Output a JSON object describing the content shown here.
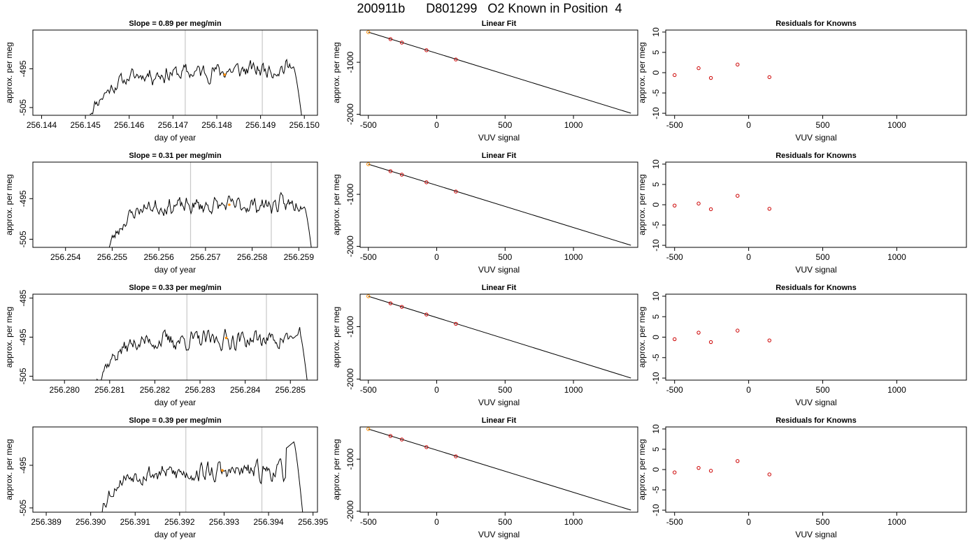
{
  "page_title": "200911b      D801299   O2 Known in Position  4",
  "colors": {
    "trace": "#000000",
    "marker": "#ff8c00",
    "residual": "#cc0000",
    "vline": "#c8c8c8"
  },
  "chart_data": [
    {
      "type": "line",
      "title": "Slope =  0.89  per meg/min",
      "xlabel": "day of year",
      "ylabel": "approx. per meg",
      "xlim": [
        256.1438,
        256.1503
      ],
      "xticks": [
        "256.144",
        "256.145",
        "256.146",
        "256.147",
        "256.148",
        "256.149",
        "256.150"
      ],
      "xtick_values": [
        256.144,
        256.145,
        256.146,
        256.147,
        256.148,
        256.149,
        256.15
      ],
      "ylim": [
        -507,
        -485
      ],
      "yticks": [
        "-505",
        "-495"
      ],
      "ytick_values": [
        -505,
        -495
      ],
      "vlines": [
        256.14728,
        256.14904
      ],
      "marker": [
        256.14818,
        -496.5
      ],
      "trace": {
        "start": 256.1451,
        "end": 256.15,
        "n": 220,
        "seed": 11,
        "rise": 0.27,
        "base": -506,
        "level": -496.5,
        "trend": 0.89,
        "wiggle": 2.2,
        "drop_at": 0.95,
        "drop_to": -513,
        "tail_top": -494.5
      },
      "grid": false
    },
    {
      "type": "line",
      "title": "Linear Fit",
      "xlabel": "VUV signal",
      "ylabel": "approx. per meg",
      "xlim": [
        -560,
        1470
      ],
      "xticks": [
        "-500",
        "0",
        "500",
        "1000"
      ],
      "xtick_values": [
        -500,
        0,
        500,
        1000
      ],
      "ylim": [
        -2020,
        -380
      ],
      "yticks": [
        "-1000",
        "-2000"
      ],
      "ytick_values": [
        -1000,
        -2000
      ],
      "line": {
        "x": [
          -500,
          1420
        ],
        "y": [
          -420,
          -1980
        ]
      },
      "points": {
        "x": [
          -500,
          -338,
          -255,
          -75,
          140
        ],
        "y": [
          -420,
          -554,
          -622,
          -768,
          -946
        ]
      },
      "orange_index": 0,
      "grid": false
    },
    {
      "type": "scatter",
      "title": "Residuals for Knowns",
      "xlabel": "VUV signal",
      "ylabel": "approx. per meg",
      "xlim": [
        -560,
        1470
      ],
      "xticks": [
        "-500",
        "0",
        "500",
        "1000"
      ],
      "xtick_values": [
        -500,
        0,
        500,
        1000
      ],
      "ylim": [
        -10.5,
        10.5
      ],
      "yticks": [
        "-10",
        "-5",
        "0",
        "5",
        "10"
      ],
      "ytick_values": [
        -10,
        -5,
        0,
        5,
        10
      ],
      "points": {
        "x": [
          -500,
          -338,
          -255,
          -75,
          140
        ],
        "y": [
          -0.6,
          1.1,
          -1.3,
          2.0,
          -1.1
        ]
      },
      "grid": false
    },
    {
      "type": "line",
      "title": "Slope =  0.31  per meg/min",
      "xlabel": "day of year",
      "ylabel": "approx. per meg",
      "xlim": [
        256.2533,
        256.2594
      ],
      "xticks": [
        "256.254",
        "256.255",
        "256.256",
        "256.257",
        "256.258",
        "256.259"
      ],
      "xtick_values": [
        256.254,
        256.255,
        256.256,
        256.257,
        256.258,
        256.259
      ],
      "ylim": [
        -507,
        -486
      ],
      "yticks": [
        "-505",
        "-495"
      ],
      "ytick_values": [
        -505,
        -495
      ],
      "vlines": [
        256.25668,
        256.25841
      ],
      "marker": [
        256.25751,
        -496.5
      ],
      "trace": {
        "start": 256.2549,
        "end": 256.2593,
        "n": 220,
        "seed": 23,
        "rise": 0.22,
        "base": -507.5,
        "level": -497,
        "trend": 0.31,
        "wiggle": 2.0,
        "drop_at": 0.96,
        "drop_to": -510,
        "tail_top": -497
      },
      "grid": false
    },
    {
      "type": "line",
      "title": "Linear Fit",
      "xlabel": "VUV signal",
      "ylabel": "approx. per meg",
      "xlim": [
        -560,
        1470
      ],
      "xticks": [
        "-500",
        "0",
        "500",
        "1000"
      ],
      "xtick_values": [
        -500,
        0,
        500,
        1000
      ],
      "ylim": [
        -2020,
        -380
      ],
      "yticks": [
        "-1000",
        "-2000"
      ],
      "ytick_values": [
        -1000,
        -2000
      ],
      "line": {
        "x": [
          -500,
          1420
        ],
        "y": [
          -420,
          -1980
        ]
      },
      "points": {
        "x": [
          -500,
          -338,
          -255,
          -75,
          140
        ],
        "y": [
          -420,
          -554,
          -622,
          -768,
          -946
        ]
      },
      "orange_index": 0,
      "grid": false
    },
    {
      "type": "scatter",
      "title": "Residuals for Knowns",
      "xlabel": "VUV signal",
      "ylabel": "approx. per meg",
      "xlim": [
        -560,
        1470
      ],
      "xticks": [
        "-500",
        "0",
        "500",
        "1000"
      ],
      "xtick_values": [
        -500,
        0,
        500,
        1000
      ],
      "ylim": [
        -10.5,
        10.5
      ],
      "yticks": [
        "-10",
        "-5",
        "0",
        "5",
        "10"
      ],
      "ytick_values": [
        -10,
        -5,
        0,
        5,
        10
      ],
      "points": {
        "x": [
          -500,
          -338,
          -255,
          -75,
          140
        ],
        "y": [
          -0.2,
          0.3,
          -1.1,
          2.2,
          -1.0
        ]
      },
      "grid": false
    },
    {
      "type": "line",
      "title": "Slope =  0.33  per meg/min",
      "xlabel": "day of year",
      "ylabel": "approx. per meg",
      "xlim": [
        256.2793,
        256.2856
      ],
      "xticks": [
        "256.280",
        "256.281",
        "256.282",
        "256.283",
        "256.284",
        "256.285"
      ],
      "xtick_values": [
        256.28,
        256.281,
        256.282,
        256.283,
        256.284,
        256.285
      ],
      "ylim": [
        -506,
        -484
      ],
      "yticks": [
        "-505",
        "-495",
        "-485"
      ],
      "ytick_values": [
        -505,
        -495,
        -485
      ],
      "vlines": [
        256.28271,
        256.28447
      ],
      "marker": [
        256.28358,
        -495.2
      ],
      "trace": {
        "start": 256.2807,
        "end": 256.2854,
        "n": 220,
        "seed": 37,
        "rise": 0.25,
        "base": -506,
        "level": -496,
        "trend": 0.33,
        "wiggle": 2.3,
        "drop_at": 0.96,
        "drop_to": -509,
        "tail_top": -494
      },
      "grid": false
    },
    {
      "type": "line",
      "title": "Linear Fit",
      "xlabel": "VUV signal",
      "ylabel": "approx. per meg",
      "xlim": [
        -560,
        1470
      ],
      "xticks": [
        "-500",
        "0",
        "500",
        "1000"
      ],
      "xtick_values": [
        -500,
        0,
        500,
        1000
      ],
      "ylim": [
        -2020,
        -380
      ],
      "yticks": [
        "-1000",
        "-2000"
      ],
      "ytick_values": [
        -1000,
        -2000
      ],
      "line": {
        "x": [
          -500,
          1420
        ],
        "y": [
          -420,
          -1980
        ]
      },
      "points": {
        "x": [
          -500,
          -338,
          -255,
          -75,
          140
        ],
        "y": [
          -420,
          -554,
          -622,
          -768,
          -946
        ]
      },
      "orange_index": 0,
      "grid": false
    },
    {
      "type": "scatter",
      "title": "Residuals for Knowns",
      "xlabel": "VUV signal",
      "ylabel": "approx. per meg",
      "xlim": [
        -560,
        1470
      ],
      "xticks": [
        "-500",
        "0",
        "500",
        "1000"
      ],
      "xtick_values": [
        -500,
        0,
        500,
        1000
      ],
      "ylim": [
        -10.5,
        10.5
      ],
      "yticks": [
        "-10",
        "-5",
        "0",
        "5",
        "10"
      ],
      "ytick_values": [
        -10,
        -5,
        0,
        5,
        10
      ],
      "points": {
        "x": [
          -500,
          -338,
          -255,
          -75,
          140
        ],
        "y": [
          -0.5,
          1.1,
          -1.2,
          1.6,
          -0.8
        ]
      },
      "grid": false
    },
    {
      "type": "line",
      "title": "Slope =  0.39  per meg/min",
      "xlabel": "day of year",
      "ylabel": "approx. per meg",
      "xlim": [
        256.3887,
        256.3951
      ],
      "xticks": [
        "256.389",
        "256.390",
        "256.391",
        "256.392",
        "256.393",
        "256.394",
        "256.395"
      ],
      "xtick_values": [
        256.389,
        256.39,
        256.391,
        256.392,
        256.393,
        256.394,
        256.395
      ],
      "ylim": [
        -506,
        -486
      ],
      "yticks": [
        "-505",
        "-495"
      ],
      "ytick_values": [
        -505,
        -495
      ],
      "vlines": [
        256.39214,
        256.39385
      ],
      "marker": [
        256.39296,
        -496.2
      ],
      "trace": {
        "start": 256.3902,
        "end": 256.3948,
        "n": 220,
        "seed": 53,
        "rise": 0.2,
        "base": -506,
        "level": -497,
        "trend": 0.39,
        "wiggle": 2.2,
        "drop_at": 0.95,
        "drop_to": -510,
        "tail_top": -489.5
      },
      "grid": false
    },
    {
      "type": "line",
      "title": "Linear Fit",
      "xlabel": "VUV signal",
      "ylabel": "approx. per meg",
      "xlim": [
        -560,
        1470
      ],
      "xticks": [
        "-500",
        "0",
        "500",
        "1000"
      ],
      "xtick_values": [
        -500,
        0,
        500,
        1000
      ],
      "ylim": [
        -2020,
        -380
      ],
      "yticks": [
        "-1000",
        "-2000"
      ],
      "ytick_values": [
        -1000,
        -2000
      ],
      "line": {
        "x": [
          -500,
          1420
        ],
        "y": [
          -420,
          -1980
        ]
      },
      "points": {
        "x": [
          -500,
          -338,
          -255,
          -75,
          140
        ],
        "y": [
          -420,
          -554,
          -622,
          -768,
          -946
        ]
      },
      "orange_index": 0,
      "grid": false
    },
    {
      "type": "scatter",
      "title": "Residuals for Knowns",
      "xlabel": "VUV signal",
      "ylabel": "approx. per meg",
      "xlim": [
        -560,
        1470
      ],
      "xticks": [
        "-500",
        "0",
        "500",
        "1000"
      ],
      "xtick_values": [
        -500,
        0,
        500,
        1000
      ],
      "ylim": [
        -10.5,
        10.5
      ],
      "yticks": [
        "-10",
        "-5",
        "0",
        "5",
        "10"
      ],
      "ytick_values": [
        -10,
        -5,
        0,
        5,
        10
      ],
      "points": {
        "x": [
          -500,
          -338,
          -255,
          -75,
          140
        ],
        "y": [
          -0.7,
          0.4,
          -0.3,
          2.1,
          -1.2
        ]
      },
      "grid": false
    }
  ]
}
